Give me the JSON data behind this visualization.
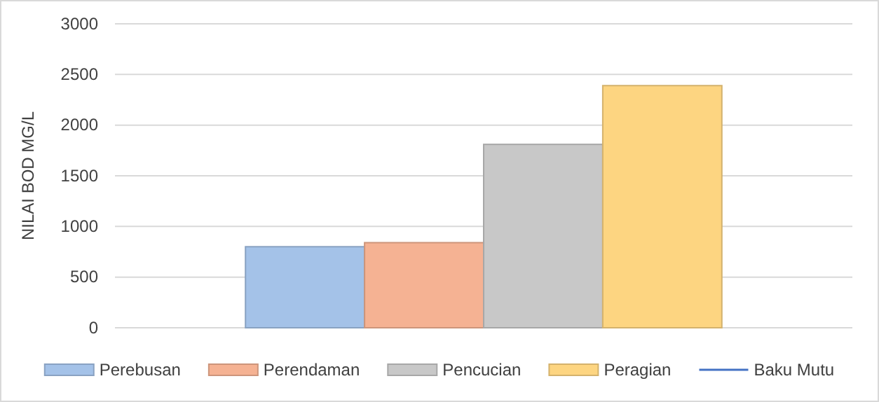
{
  "chart_data": {
    "type": "bar",
    "ylabel": "NILAI BOD MG/L",
    "categories": [
      null
    ],
    "ylim": [
      0,
      3000
    ],
    "yticks": [
      0,
      500,
      1000,
      1500,
      2000,
      2500,
      3000
    ],
    "grid": "y",
    "legend": "bottom",
    "series": [
      {
        "name": "Perebusan",
        "color": "#a4c2e8",
        "values": [
          800
        ]
      },
      {
        "name": "Perendaman",
        "color": "#f5b293",
        "values": [
          840
        ]
      },
      {
        "name": "Pencucian",
        "color": "#c8c8c8",
        "values": [
          1810
        ]
      },
      {
        "name": "Peragian",
        "color": "#fdd581",
        "values": [
          2390
        ]
      },
      {
        "name": "Baku Mutu",
        "type": "line",
        "color": "#4472c4",
        "values": [
          null
        ]
      }
    ]
  }
}
